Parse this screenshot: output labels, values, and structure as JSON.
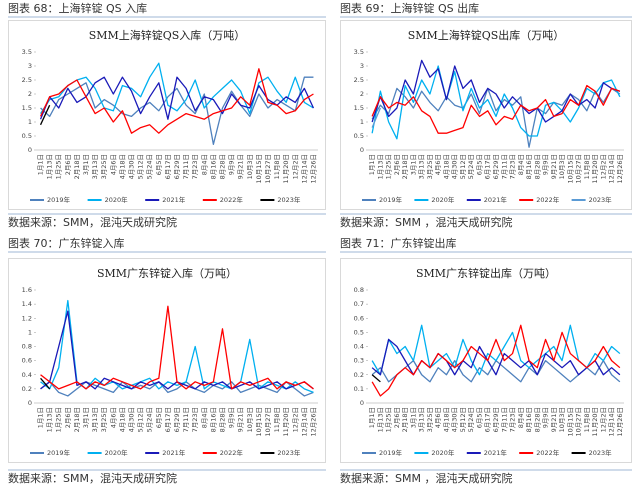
{
  "headers": [
    "图表 68：上海锌锭 QS 入库",
    "图表 69：上海锌锭 QS 出库",
    "图表 70：广东锌锭入库",
    "图表 71：广东锌锭出库"
  ],
  "sources": [
    "数据来源：SMM，混沌天成研究院",
    "数据来源：SMM ，混沌天成研究院",
    "数据来源：SMM，混沌天成研究院",
    "数据来源：SMM ，混沌天成研究院"
  ],
  "chart_data": [
    {
      "type": "line",
      "title": "SMM上海锌锭QS入库（万吨）",
      "categories": [
        "1月1日",
        "1月13日",
        "1月25日",
        "2月6日",
        "2月18日",
        "3月1日",
        "3月13日",
        "3月25日",
        "4月6日",
        "4月18日",
        "4月30日",
        "5月12日",
        "5月24日",
        "6月5日",
        "6月17日",
        "6月29日",
        "7月11日",
        "7月23日",
        "8月4日",
        "8月16日",
        "8月28日",
        "9月9日",
        "9月21日",
        "10月3日",
        "10月15日",
        "10月27日",
        "11月8日",
        "11月20日",
        "12月2日",
        "12月14日",
        "12月26日"
      ],
      "ylim": [
        0,
        3.5
      ],
      "yticks": [
        0,
        0.5,
        1,
        1.5,
        2,
        2.5,
        3,
        3.5
      ],
      "series": [
        {
          "name": "2019年",
          "color": "#4f81bd",
          "values": [
            1.5,
            1.2,
            1.8,
            2.0,
            2.2,
            2.4,
            1.5,
            1.8,
            1.6,
            1.3,
            1.2,
            1.5,
            1.7,
            1.4,
            1.9,
            2.2,
            1.6,
            1.3,
            2.0,
            0.2,
            1.5,
            2.1,
            1.6,
            1.2,
            2.0,
            1.5,
            1.8,
            1.6,
            1.4,
            2.6,
            2.6
          ]
        },
        {
          "name": "2020年",
          "color": "#00b0f0",
          "values": [
            1.3,
            1.8,
            1.9,
            2.3,
            2.5,
            2.6,
            2.2,
            1.5,
            1.4,
            2.3,
            2.2,
            1.9,
            2.6,
            3.1,
            1.6,
            1.4,
            1.8,
            2.5,
            1.5,
            1.9,
            2.2,
            2.5,
            2.1,
            1.3,
            2.4,
            2.6,
            2.1,
            1.7,
            2.6,
            1.7,
            1.5
          ]
        },
        {
          "name": "2021年",
          "color": "#1a1ab8",
          "values": [
            1.1,
            1.9,
            1.5,
            2.2,
            1.7,
            1.9,
            2.4,
            2.6,
            2.0,
            2.6,
            2.1,
            1.3,
            1.9,
            2.4,
            1.1,
            2.6,
            2.2,
            1.4,
            1.9,
            1.8,
            1.3,
            2.0,
            1.6,
            1.5,
            2.3,
            1.8,
            1.6,
            1.9,
            1.7,
            2.2,
            1.5
          ]
        },
        {
          "name": "2022年",
          "color": "#ff0000",
          "values": [
            1.2,
            1.9,
            2.0,
            2.3,
            2.5,
            1.9,
            1.3,
            1.5,
            1.0,
            1.4,
            0.6,
            0.8,
            0.9,
            0.6,
            0.9,
            1.1,
            1.3,
            1.2,
            1.1,
            1.3,
            1.4,
            1.5,
            1.9,
            1.6,
            2.9,
            1.7,
            1.6,
            1.3,
            1.4,
            1.8,
            2.0
          ]
        },
        {
          "name": "2023年",
          "color": "#000000",
          "values": [
            0.9,
            1.6,
            null,
            null,
            null,
            null,
            null,
            null,
            null,
            null,
            null,
            null,
            null,
            null,
            null,
            null,
            null,
            null,
            null,
            null,
            null,
            null,
            null,
            null,
            null,
            null,
            null,
            null,
            null,
            null,
            null
          ]
        }
      ]
    },
    {
      "type": "line",
      "title": "SMM上海锌锭QS出库（万吨）",
      "categories": [
        "1月1日",
        "1月13日",
        "1月25日",
        "2月6日",
        "2月18日",
        "3月1日",
        "3月13日",
        "3月25日",
        "4月6日",
        "4月18日",
        "4月30日",
        "5月12日",
        "5月24日",
        "6月5日",
        "6月17日",
        "6月29日",
        "7月11日",
        "7月23日",
        "8月4日",
        "8月16日",
        "8月28日",
        "9月9日",
        "9月21日",
        "10月3日",
        "10月15日",
        "10月27日",
        "11月8日",
        "11月20日",
        "12月2日",
        "12月14日",
        "12月26日"
      ],
      "ylim": [
        0,
        3.5
      ],
      "yticks": [
        0,
        0.5,
        1,
        1.5,
        2,
        2.5,
        3,
        3.5
      ],
      "series": [
        {
          "name": "2019年",
          "color": "#4f81bd",
          "values": [
            1.1,
            1.6,
            1.3,
            2.2,
            1.9,
            1.5,
            2.1,
            1.7,
            1.4,
            1.9,
            1.6,
            1.5,
            2.0,
            1.3,
            2.2,
            1.4,
            1.8,
            1.6,
            1.9,
            0.1,
            1.5,
            1.3,
            1.7,
            1.6,
            2.0,
            1.8,
            1.4,
            2.1,
            1.7,
            2.2,
            2.0
          ]
        },
        {
          "name": "2020年",
          "color": "#00b0f0",
          "values": [
            0.6,
            2.1,
            1.0,
            0.4,
            2.3,
            1.7,
            2.5,
            2.0,
            3.0,
            1.8,
            2.8,
            1.4,
            2.2,
            1.5,
            1.8,
            1.2,
            2.0,
            1.5,
            0.8,
            0.5,
            0.5,
            1.6,
            1.7,
            1.4,
            1.0,
            1.5,
            2.2,
            2.0,
            2.4,
            2.5,
            1.9
          ]
        },
        {
          "name": "2021年",
          "color": "#1a1ab8",
          "values": [
            1.0,
            1.9,
            1.2,
            1.5,
            2.5,
            2.0,
            3.2,
            2.6,
            2.9,
            1.8,
            3.0,
            2.2,
            2.5,
            1.7,
            2.2,
            2.0,
            1.5,
            1.9,
            1.6,
            1.3,
            1.5,
            1.0,
            1.2,
            1.4,
            2.0,
            1.6,
            1.8,
            1.5,
            2.4,
            2.2,
            2.1
          ]
        },
        {
          "name": "2022年",
          "color": "#ff0000",
          "values": [
            1.2,
            1.9,
            1.5,
            1.7,
            1.6,
            1.9,
            1.4,
            1.2,
            0.6,
            0.6,
            0.7,
            0.8,
            1.6,
            1.2,
            1.4,
            0.9,
            1.2,
            1.1,
            1.6,
            1.4,
            1.5,
            1.8,
            1.2,
            1.3,
            1.8,
            1.6,
            2.3,
            2.1,
            1.6,
            2.2,
            2.1
          ]
        },
        {
          "name": "2023年",
          "color": "#5b9bd5",
          "values": [
            0.8,
            1.5,
            null,
            null,
            null,
            null,
            null,
            null,
            null,
            null,
            null,
            null,
            null,
            null,
            null,
            null,
            null,
            null,
            null,
            null,
            null,
            null,
            null,
            null,
            null,
            null,
            null,
            null,
            null,
            null,
            null
          ]
        }
      ]
    },
    {
      "type": "line",
      "title": "SMM广东锌锭入库（万吨）",
      "categories": [
        "1月1日",
        "1月13日",
        "1月25日",
        "2月6日",
        "2月18日",
        "3月1日",
        "3月13日",
        "3月25日",
        "4月6日",
        "4月18日",
        "4月30日",
        "5月12日",
        "5月24日",
        "6月5日",
        "6月17日",
        "6月29日",
        "7月11日",
        "7月23日",
        "8月4日",
        "8月16日",
        "8月28日",
        "9月9日",
        "9月21日",
        "10月3日",
        "10月15日",
        "10月27日",
        "11月8日",
        "11月20日",
        "12月2日",
        "12月14日",
        "12月26日"
      ],
      "ylim": [
        0,
        1.6
      ],
      "yticks": [
        0,
        0.2,
        0.4,
        0.6,
        0.8,
        1,
        1.2,
        1.4,
        1.6
      ],
      "series": [
        {
          "name": "2019年",
          "color": "#4f81bd",
          "values": [
            0.2,
            0.3,
            0.15,
            0.1,
            0.2,
            0.3,
            0.25,
            0.2,
            0.15,
            0.3,
            0.2,
            0.25,
            0.2,
            0.3,
            0.15,
            0.2,
            0.3,
            0.2,
            0.15,
            0.25,
            0.2,
            0.3,
            0.15,
            0.2,
            0.25,
            0.2,
            0.15,
            0.3,
            0.2,
            0.1,
            0.15
          ]
        },
        {
          "name": "2020年",
          "color": "#00b0f0",
          "values": [
            0.3,
            0.2,
            0.5,
            1.45,
            0.3,
            0.2,
            0.35,
            0.25,
            0.3,
            0.2,
            0.25,
            0.3,
            0.35,
            0.2,
            0.3,
            0.25,
            0.3,
            0.8,
            0.2,
            0.3,
            0.25,
            0.2,
            0.3,
            0.9,
            0.2,
            0.3,
            0.25,
            0.2,
            0.3,
            0.2,
            0.15
          ]
        },
        {
          "name": "2021年",
          "color": "#1a1ab8",
          "values": [
            0.2,
            0.3,
            0.8,
            1.3,
            0.25,
            0.3,
            0.2,
            0.35,
            0.3,
            0.25,
            0.2,
            0.3,
            0.25,
            0.3,
            0.2,
            0.3,
            0.25,
            0.2,
            0.3,
            0.25,
            0.3,
            0.2,
            0.25,
            0.3,
            0.2,
            0.25,
            0.3,
            0.2,
            0.25,
            0.3,
            0.2
          ]
        },
        {
          "name": "2022年",
          "color": "#ff0000",
          "values": [
            0.4,
            0.3,
            0.2,
            0.25,
            0.3,
            0.2,
            0.3,
            0.25,
            0.35,
            0.3,
            0.25,
            0.2,
            0.3,
            0.35,
            1.37,
            0.3,
            0.2,
            0.3,
            0.25,
            0.3,
            1.05,
            0.2,
            0.3,
            0.25,
            0.3,
            0.35,
            0.2,
            0.3,
            0.25,
            0.3,
            0.2
          ]
        },
        {
          "name": "2023年",
          "color": "#000000",
          "values": [
            0.35,
            0.2,
            null,
            null,
            null,
            null,
            null,
            null,
            null,
            null,
            null,
            null,
            null,
            null,
            null,
            null,
            null,
            null,
            null,
            null,
            null,
            null,
            null,
            null,
            null,
            null,
            null,
            null,
            null,
            null,
            null
          ]
        }
      ]
    },
    {
      "type": "line",
      "title": "SMM广东锌锭出库（万吨）",
      "categories": [
        "1月1日",
        "1月13日",
        "1月25日",
        "2月6日",
        "2月18日",
        "3月1日",
        "3月13日",
        "3月25日",
        "4月6日",
        "4月18日",
        "4月30日",
        "5月12日",
        "5月24日",
        "6月5日",
        "6月17日",
        "6月29日",
        "7月11日",
        "7月23日",
        "8月4日",
        "8月16日",
        "8月28日",
        "9月9日",
        "9月21日",
        "10月3日",
        "10月15日",
        "10月27日",
        "11月8日",
        "11月20日",
        "12月2日",
        "12月14日",
        "12月26日"
      ],
      "ylim": [
        0,
        0.8
      ],
      "yticks": [
        0,
        0.1,
        0.2,
        0.3,
        0.4,
        0.5,
        0.6,
        0.7,
        0.8
      ],
      "series": [
        {
          "name": "2019年",
          "color": "#4f81bd",
          "values": [
            0.2,
            0.25,
            0.15,
            0.2,
            0.25,
            0.3,
            0.2,
            0.15,
            0.25,
            0.2,
            0.3,
            0.2,
            0.15,
            0.25,
            0.2,
            0.3,
            0.25,
            0.2,
            0.15,
            0.25,
            0.2,
            0.3,
            0.25,
            0.2,
            0.15,
            0.2,
            0.25,
            0.2,
            0.3,
            0.2,
            0.15
          ]
        },
        {
          "name": "2020年",
          "color": "#00b0f0",
          "values": [
            0.3,
            0.2,
            0.45,
            0.35,
            0.4,
            0.3,
            0.55,
            0.25,
            0.3,
            0.35,
            0.25,
            0.45,
            0.3,
            0.2,
            0.35,
            0.3,
            0.4,
            0.5,
            0.3,
            0.25,
            0.3,
            0.35,
            0.4,
            0.3,
            0.55,
            0.3,
            0.25,
            0.35,
            0.3,
            0.4,
            0.35
          ]
        },
        {
          "name": "2021年",
          "color": "#1a1ab8",
          "values": [
            0.25,
            0.2,
            0.45,
            0.4,
            0.3,
            0.2,
            0.3,
            0.25,
            0.35,
            0.3,
            0.2,
            0.3,
            0.25,
            0.4,
            0.3,
            0.2,
            0.35,
            0.3,
            0.25,
            0.3,
            0.2,
            0.35,
            0.3,
            0.25,
            0.3,
            0.2,
            0.25,
            0.3,
            0.2,
            0.25,
            0.2
          ]
        },
        {
          "name": "2022年",
          "color": "#ff0000",
          "values": [
            0.15,
            0.05,
            0.1,
            0.2,
            0.25,
            0.2,
            0.3,
            0.25,
            0.35,
            0.3,
            0.25,
            0.3,
            0.4,
            0.35,
            0.3,
            0.45,
            0.3,
            0.35,
            0.55,
            0.3,
            0.25,
            0.45,
            0.3,
            0.5,
            0.35,
            0.3,
            0.25,
            0.3,
            0.4,
            0.3,
            0.25
          ]
        },
        {
          "name": "2023年",
          "color": "#000000",
          "values": [
            0.2,
            0.15,
            null,
            null,
            null,
            null,
            null,
            null,
            null,
            null,
            null,
            null,
            null,
            null,
            null,
            null,
            null,
            null,
            null,
            null,
            null,
            null,
            null,
            null,
            null,
            null,
            null,
            null,
            null,
            null,
            null
          ]
        }
      ]
    }
  ]
}
